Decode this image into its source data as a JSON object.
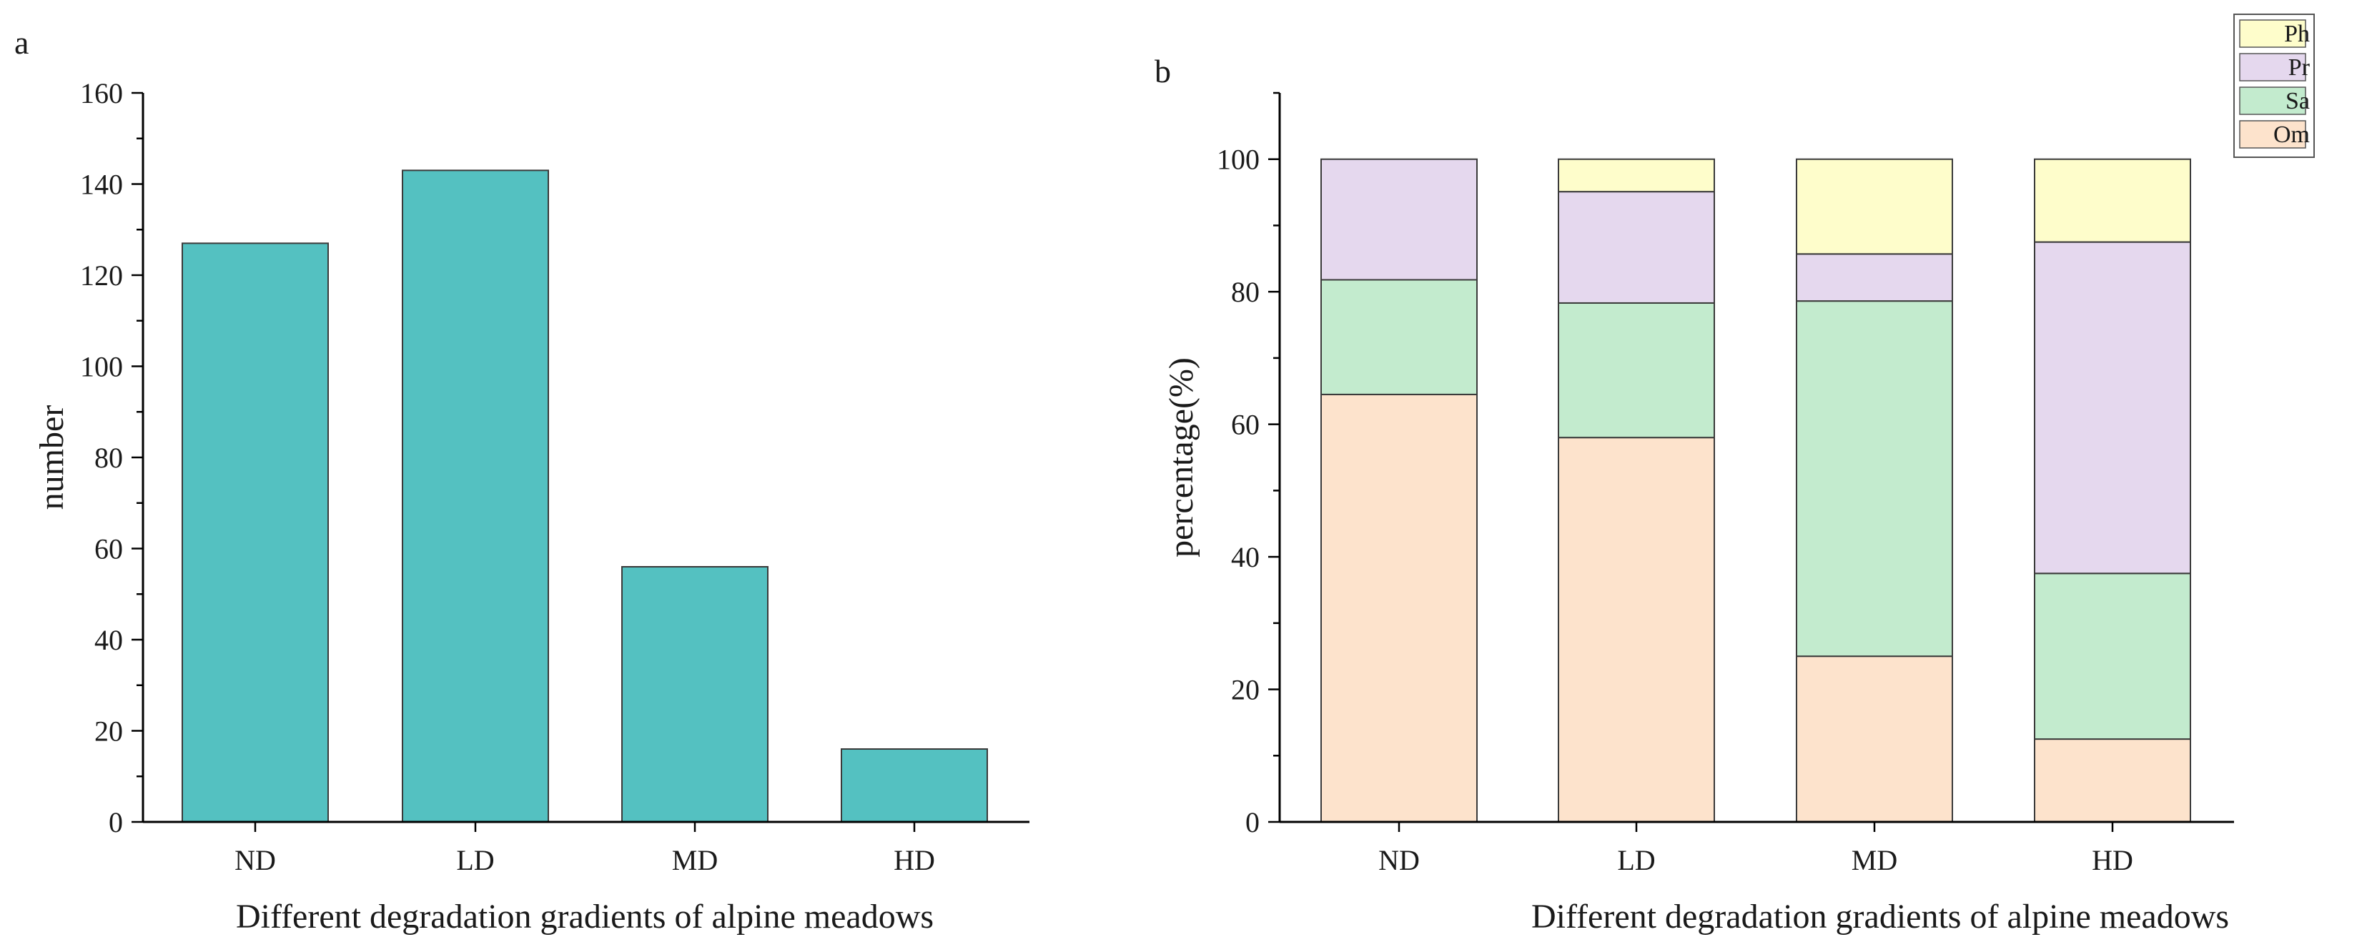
{
  "chart_data": [
    {
      "type": "bar",
      "panel_label": "a",
      "categories": [
        "ND",
        "LD",
        "MD",
        "HD"
      ],
      "values": [
        127,
        143,
        56,
        16
      ],
      "xlabel": "Different degradation gradients of alpine meadows",
      "ylabel": "number",
      "ylim": [
        0,
        160
      ],
      "yticks": [
        0,
        20,
        40,
        60,
        80,
        100,
        120,
        140,
        160
      ],
      "bar_color": "#54c1c1",
      "grid": false
    },
    {
      "type": "bar",
      "stacked": true,
      "panel_label": "b",
      "categories": [
        "ND",
        "LD",
        "MD",
        "HD"
      ],
      "series": [
        {
          "name": "Om",
          "color": "#fde3cc",
          "values": [
            64.5,
            58,
            25,
            12.5
          ]
        },
        {
          "name": "Sa",
          "color": "#c3ebce",
          "values": [
            17.3,
            20.3,
            53.6,
            25
          ]
        },
        {
          "name": "Pr",
          "color": "#e5d8ee",
          "values": [
            18.2,
            16.8,
            7.1,
            50
          ]
        },
        {
          "name": "Ph",
          "color": "#fefdcb",
          "values": [
            0,
            4.9,
            14.3,
            12.5
          ]
        }
      ],
      "legend_order": [
        "Ph",
        "Pr",
        "Sa",
        "Om"
      ],
      "legend_position": "top-right",
      "xlabel": "Different degradation gradients of alpine meadows",
      "ylabel": "percentage(%)",
      "ylim": [
        0,
        110
      ],
      "yticks": [
        0,
        20,
        40,
        60,
        80,
        100
      ],
      "grid": false
    }
  ]
}
